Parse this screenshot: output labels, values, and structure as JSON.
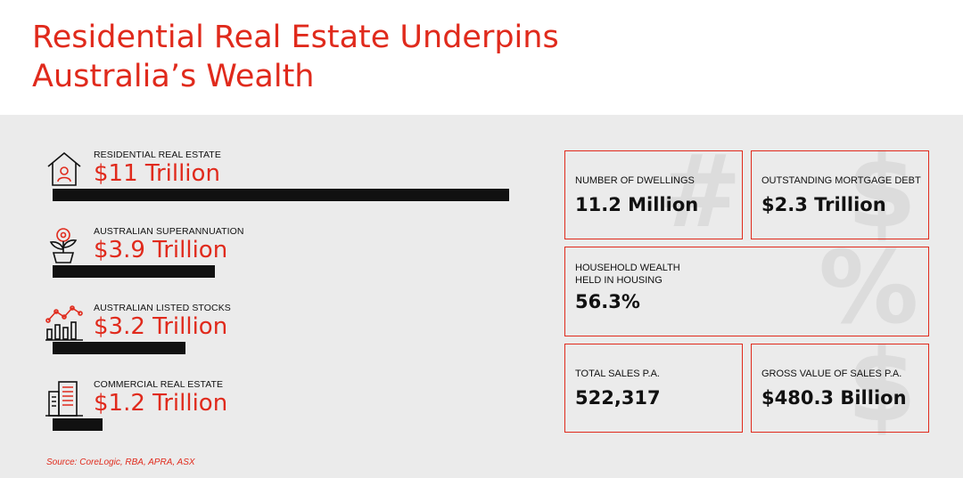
{
  "title_line1": "Residential Real Estate Underpins",
  "title_line2": "Australia’s Wealth",
  "source": "Source: CoreLogic, RBA, APRA, ASX",
  "colors": {
    "accent": "#e02a1c",
    "bar": "#111111",
    "panel": "#ebebeb"
  },
  "chart_data": {
    "type": "bar",
    "orientation": "horizontal",
    "title": "",
    "xlabel": "",
    "ylabel": "",
    "unit": "Trillion AUD",
    "categories": [
      "RESIDENTIAL REAL ESTATE",
      "AUSTRALIAN SUPERANNUATION",
      "AUSTRALIAN LISTED STOCKS",
      "COMMERCIAL REAL ESTATE"
    ],
    "values": [
      11,
      3.9,
      3.2,
      1.2
    ],
    "value_labels": [
      "$11 Trillion",
      "$3.9 Trillion",
      "$3.2 Trillion",
      "$1.2 Trillion"
    ],
    "icons": [
      "house-icon",
      "plant-coin-icon",
      "stock-chart-icon",
      "office-building-icon"
    ],
    "xlim": [
      0,
      11
    ]
  },
  "stats": {
    "dwellings": {
      "label": "NUMBER OF DWELLINGS",
      "value": "11.2 Million"
    },
    "mortgage": {
      "label": "OUTSTANDING MORTGAGE DEBT",
      "value": "$2.3 Trillion"
    },
    "household_line1": "HOUSEHOLD WEALTH",
    "household_line2": "HELD IN HOUSING",
    "household_value": "56.3%",
    "sales": {
      "label": "TOTAL SALES P.A.",
      "value": "522,317"
    },
    "gross": {
      "label": "GROSS VALUE OF SALES P.A.",
      "value": "$480.3 Billion"
    }
  },
  "symbols": [
    "#",
    "$",
    "%",
    "$"
  ]
}
